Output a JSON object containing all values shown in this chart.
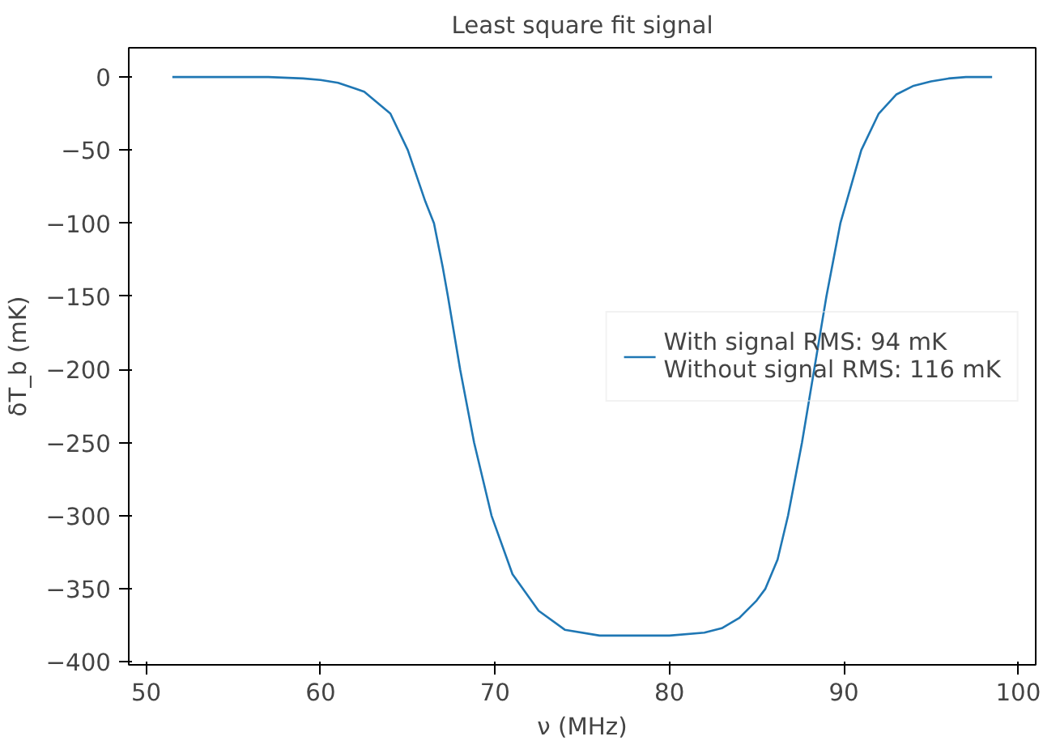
{
  "chart_data": {
    "type": "line",
    "title": "Least square fit signal",
    "xlabel": "ν (MHz)",
    "ylabel": "δT_b (mK)",
    "x": [
      51.5,
      55,
      57,
      59,
      60,
      61,
      62,
      62.5,
      63,
      64,
      65,
      66,
      66.5,
      67,
      67.3,
      68,
      68.8,
      69.8,
      71,
      72.5,
      74,
      76,
      78,
      80,
      82,
      83,
      84,
      85,
      85.5,
      86.2,
      86.8,
      87.6,
      88.3,
      89,
      89.8,
      91,
      92,
      93,
      94,
      95,
      96,
      97,
      98.5
    ],
    "series": [
      {
        "name": "With signal RMS: 94 mK\nWithout signal RMS: 116 mK",
        "color": "#1f77b4",
        "values": [
          0,
          0,
          0,
          -1,
          -2,
          -4,
          -8,
          -10,
          -15,
          -25,
          -50,
          -85,
          -100,
          -130,
          -150,
          -200,
          -250,
          -300,
          -340,
          -365,
          -378,
          -382,
          -382,
          -382,
          -380,
          -377,
          -370,
          -358,
          -350,
          -330,
          -300,
          -250,
          -200,
          -150,
          -100,
          -50,
          -25,
          -12,
          -6,
          -3,
          -1,
          0,
          0
        ]
      }
    ],
    "xlim": [
      49,
      101
    ],
    "ylim": [
      -402,
      20
    ],
    "xticks": [
      50,
      60,
      70,
      80,
      90,
      100
    ],
    "yticks": [
      0,
      -50,
      -100,
      -150,
      -200,
      -250,
      -300,
      -350,
      -400
    ],
    "grid": false,
    "legend": "right",
    "line_style": "solid",
    "marker": "none"
  }
}
